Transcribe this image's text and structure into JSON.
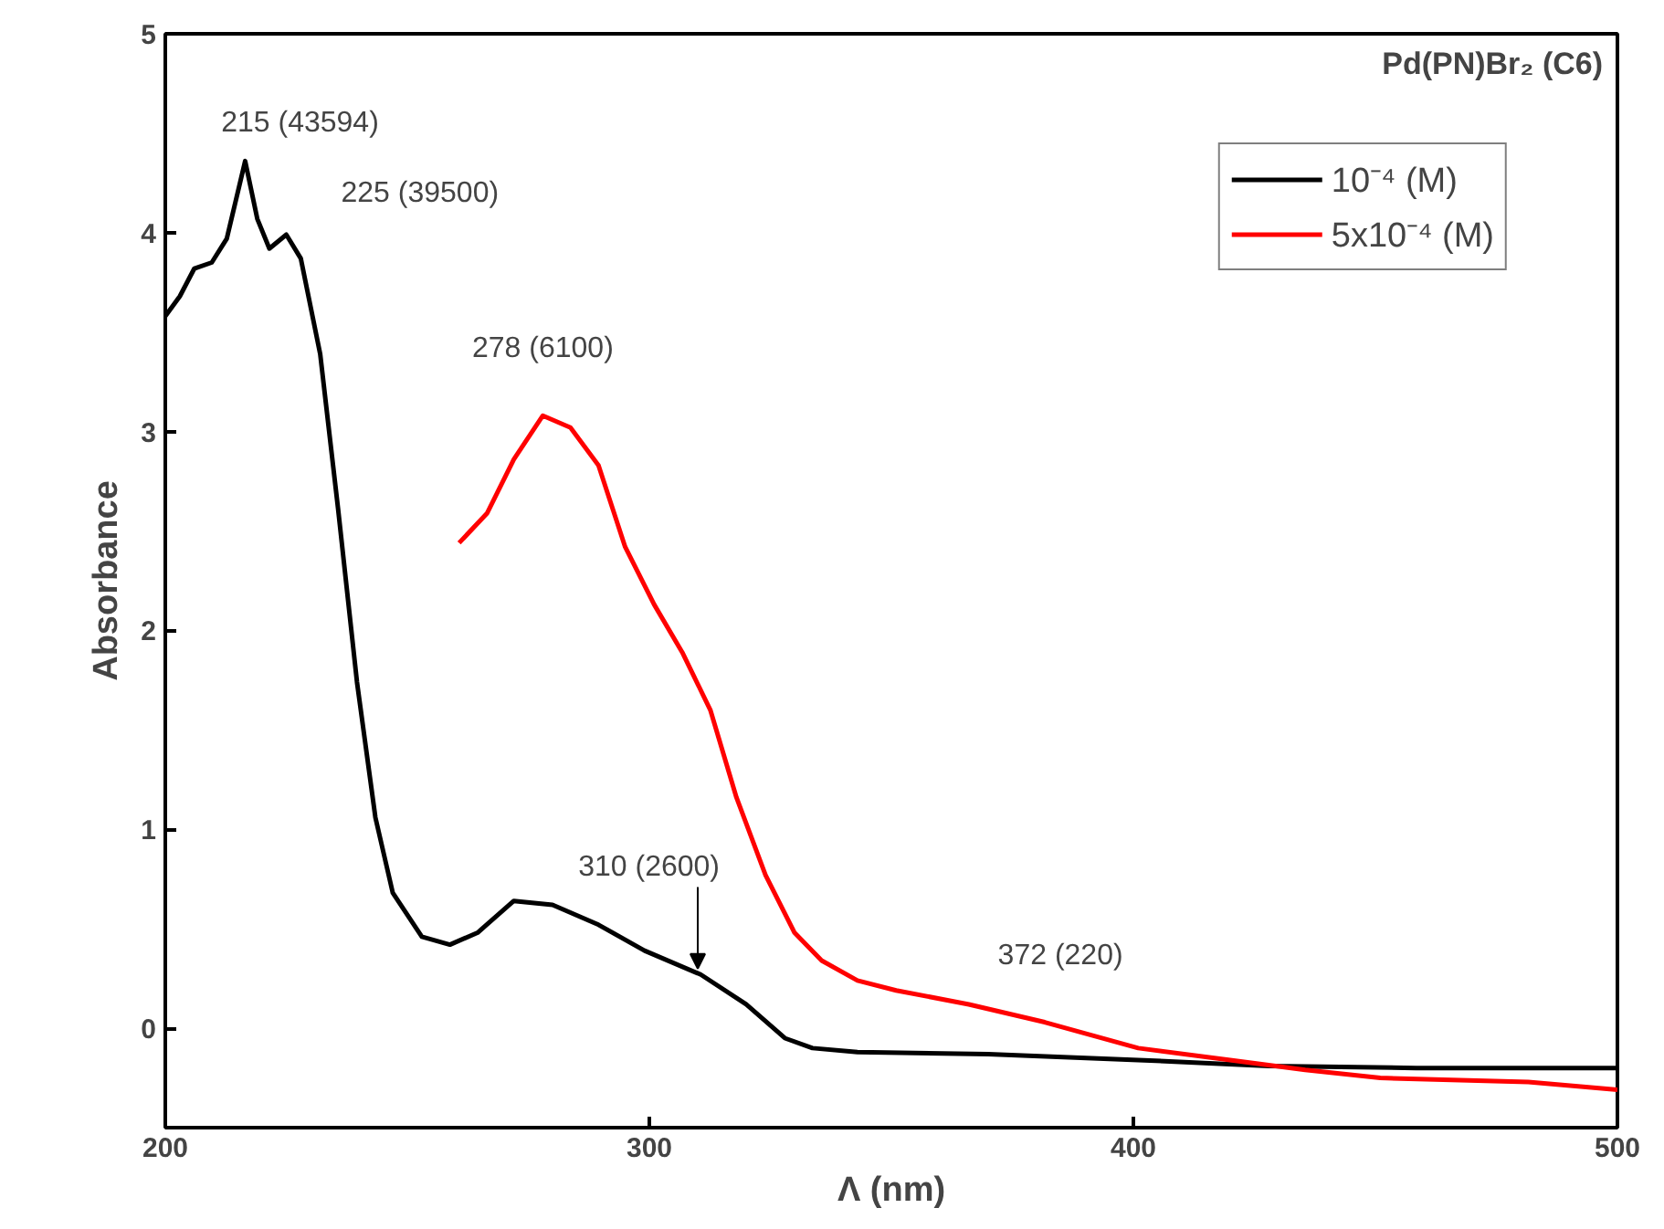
{
  "chart_data": {
    "type": "line",
    "title": "Pd(PN)Br₂ (C6)",
    "xlabel": "Λ (nm)",
    "ylabel": "Absorbance",
    "xlim": [
      200,
      500
    ],
    "xticks": [
      200,
      300,
      400,
      500
    ],
    "ylim": [
      -0.5,
      5
    ],
    "yticks": [
      0,
      1,
      2,
      3,
      4,
      5
    ],
    "legend": "top right",
    "grid": false,
    "line_style": "solid",
    "marker": "none",
    "series": [
      {
        "name": "10⁻⁴ (M)",
        "color": "#000000",
        "x": [
          200,
          203,
          206,
          209.6,
          212.7,
          216.5,
          219,
          221.5,
          225,
          228,
          232,
          235.7,
          239.6,
          243.4,
          247,
          253,
          258.8,
          264.5,
          272,
          280,
          289.5,
          299,
          310.6,
          320,
          328,
          333.7,
          343,
          370,
          401,
          428,
          458.5,
          500
        ],
        "values": [
          3.58,
          3.68,
          3.82,
          3.85,
          3.97,
          4.36,
          4.07,
          3.92,
          3.99,
          3.87,
          3.39,
          2.61,
          1.74,
          1.06,
          0.68,
          0.46,
          0.42,
          0.48,
          0.64,
          0.62,
          0.52,
          0.39,
          0.27,
          0.12,
          -0.05,
          -0.1,
          -0.12,
          -0.13,
          -0.16,
          -0.19,
          -0.2,
          -0.2
        ]
      },
      {
        "name": "5x10⁻⁴ (M)",
        "color": "#ff0000",
        "x": [
          260.7,
          266.5,
          272,
          278,
          283.7,
          289.5,
          295,
          301,
          306.8,
          312.6,
          318,
          324,
          330,
          335.6,
          343,
          351,
          366,
          381.7,
          401,
          420,
          435.5,
          451,
          481.6,
          500
        ],
        "values": [
          2.44,
          2.59,
          2.86,
          3.08,
          3.02,
          2.83,
          2.42,
          2.13,
          1.89,
          1.6,
          1.16,
          0.77,
          0.48,
          0.34,
          0.24,
          0.19,
          0.12,
          0.03,
          -0.1,
          -0.16,
          -0.21,
          -0.25,
          -0.27,
          -0.31
        ]
      }
    ],
    "annotations": [
      {
        "text": "215 (43594)",
        "x": 215,
        "y": 4.36
      },
      {
        "text": "225 (39500)",
        "x": 225,
        "y": 3.99
      },
      {
        "text": "278 (6100)",
        "x": 278,
        "y": 3.08
      },
      {
        "text": "310 (2600)",
        "x": 310,
        "y": 0.27
      },
      {
        "text": "372 (220)",
        "x": 372,
        "y": 0.1
      }
    ]
  }
}
